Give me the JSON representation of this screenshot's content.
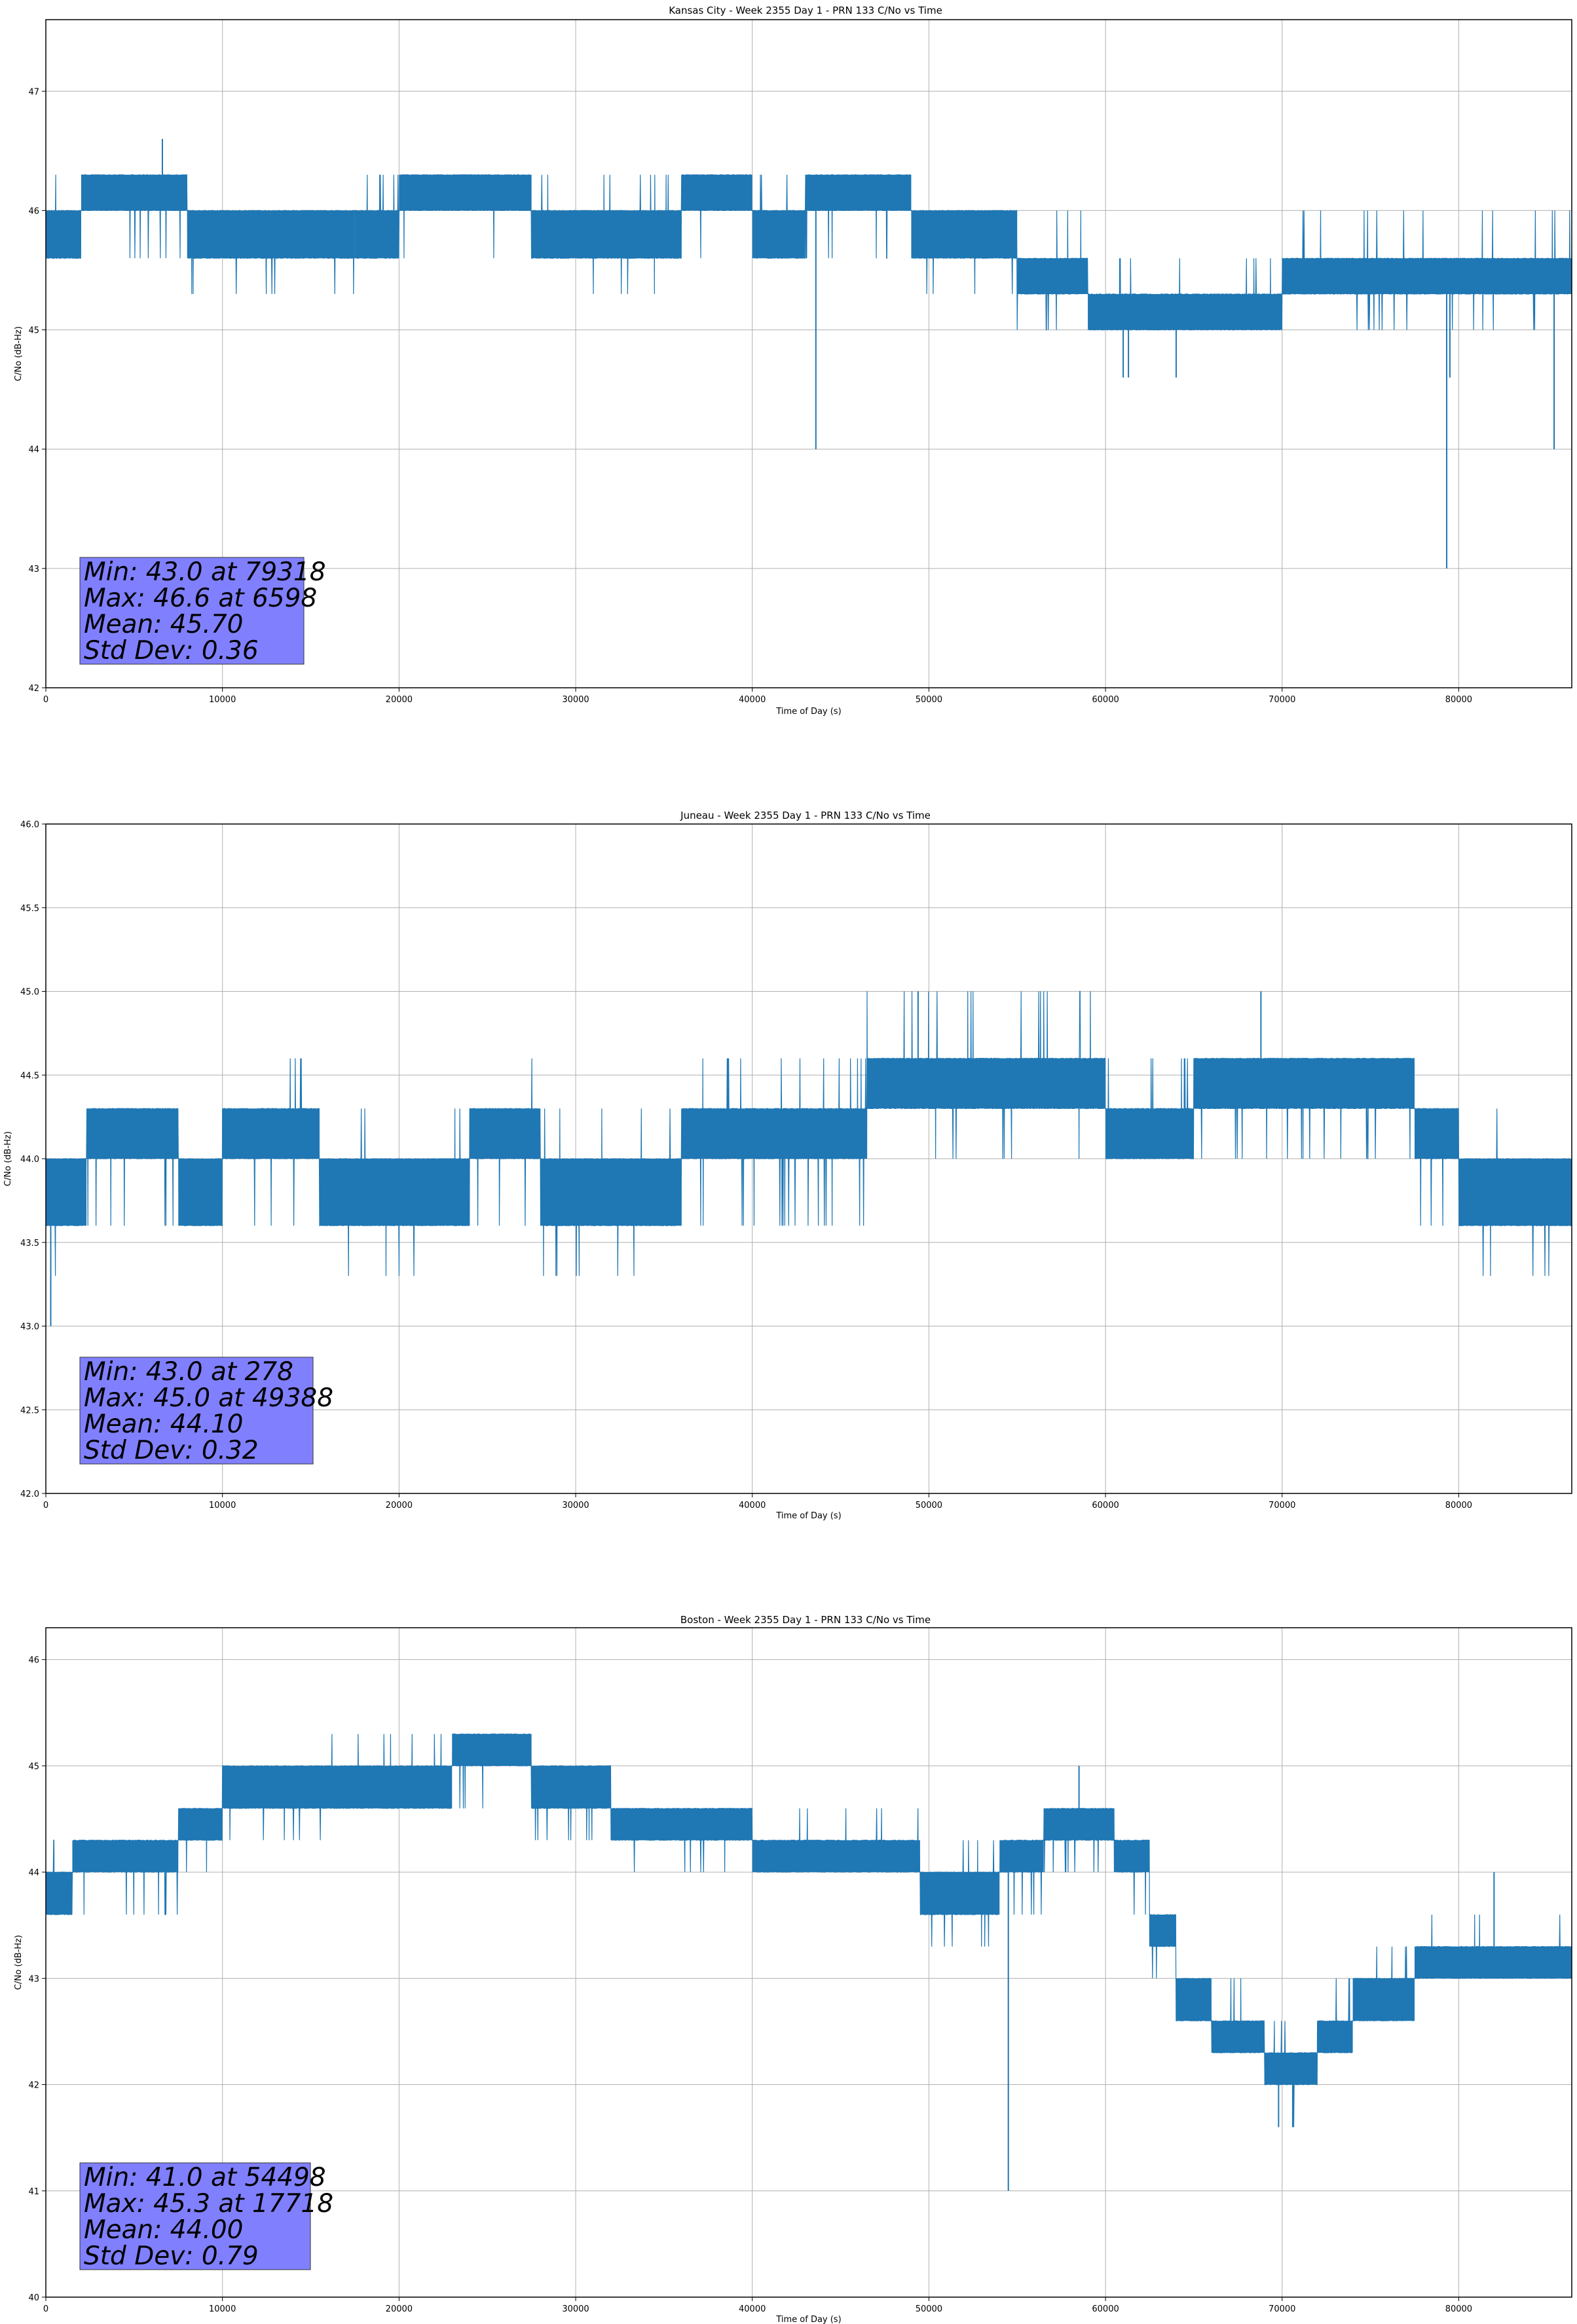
{
  "figure": {
    "line_color": "#1f77b4",
    "stats_box_color": "#8080ff",
    "grid": true
  },
  "chart_data": [
    {
      "type": "line",
      "title": "Kansas City - Week 2355 Day 1 - PRN 133 C/No vs Time",
      "xlabel": "Time of Day (s)",
      "ylabel": "C/No (dB-Hz)",
      "xlim": [
        0,
        86400
      ],
      "ylim": [
        42.0,
        47.6
      ],
      "x_ticks": [
        0,
        10000,
        20000,
        30000,
        40000,
        50000,
        60000,
        70000,
        80000
      ],
      "x_tick_labels": [
        "0",
        "10000",
        "20000",
        "30000",
        "40000",
        "50000",
        "60000",
        "70000",
        "80000"
      ],
      "y_ticks": [
        42,
        43,
        44,
        45,
        46,
        47
      ],
      "y_tick_labels": [
        "42",
        "43",
        "44",
        "45",
        "46",
        "47"
      ],
      "bands": [
        {
          "x": [
            0,
            2000
          ],
          "low": 45.6,
          "high": 46.0,
          "max": 46.3,
          "min": 45.6,
          "density": 0.4
        },
        {
          "x": [
            2000,
            8000
          ],
          "low": 46.0,
          "high": 46.3,
          "max": 46.3,
          "min": 45.6,
          "density": 0.25
        },
        {
          "x": [
            8000,
            17500
          ],
          "low": 45.6,
          "high": 46.0,
          "max": 46.0,
          "min": 45.3,
          "density": 0.6
        },
        {
          "x": [
            17500,
            20000
          ],
          "low": 45.6,
          "high": 46.0,
          "max": 46.3,
          "min": 45.6,
          "density": 0.4
        },
        {
          "x": [
            20000,
            27500
          ],
          "low": 46.0,
          "high": 46.3,
          "max": 46.3,
          "min": 45.6,
          "density": 0.5
        },
        {
          "x": [
            27500,
            36000
          ],
          "low": 45.6,
          "high": 46.0,
          "max": 46.3,
          "min": 45.3,
          "density": 0.5
        },
        {
          "x": [
            36000,
            40000
          ],
          "low": 46.0,
          "high": 46.3,
          "max": 46.3,
          "min": 45.6,
          "density": 0.6
        },
        {
          "x": [
            40000,
            43000
          ],
          "low": 45.6,
          "high": 46.0,
          "max": 46.3,
          "min": 45.6,
          "density": 0.4
        },
        {
          "x": [
            43000,
            49000
          ],
          "low": 46.0,
          "high": 46.3,
          "max": 46.3,
          "min": 45.6,
          "density": 0.5
        },
        {
          "x": [
            49000,
            55000
          ],
          "low": 45.6,
          "high": 46.0,
          "max": 46.0,
          "min": 45.3,
          "density": 0.4
        },
        {
          "x": [
            55000,
            59000
          ],
          "low": 45.3,
          "high": 45.6,
          "max": 46.0,
          "min": 45.0,
          "density": 0.5
        },
        {
          "x": [
            59000,
            70000
          ],
          "low": 45.0,
          "high": 45.3,
          "max": 45.6,
          "min": 45.0,
          "density": 0.4
        },
        {
          "x": [
            70000,
            86400
          ],
          "low": 45.3,
          "high": 45.6,
          "max": 46.0,
          "min": 45.0,
          "density": 0.5
        }
      ],
      "spikes": [
        {
          "x": 6598,
          "y": 46.6
        },
        {
          "x": 43600,
          "y": 44.0
        },
        {
          "x": 61000,
          "y": 44.6
        },
        {
          "x": 61300,
          "y": 44.6
        },
        {
          "x": 64000,
          "y": 44.6
        },
        {
          "x": 79318,
          "y": 43.0
        },
        {
          "x": 79500,
          "y": 44.6
        },
        {
          "x": 85400,
          "y": 44.0
        }
      ],
      "stats": {
        "min_value": 43.0,
        "min_time": 79318,
        "max_value": 46.6,
        "max_time": 6598,
        "mean": 45.7,
        "std_dev": 0.36,
        "lines": [
          "Min: 43.0 at 79318",
          "Max: 46.6 at 6598",
          "Mean: 45.70",
          "Std Dev: 0.36"
        ]
      }
    },
    {
      "type": "line",
      "title": "Juneau - Week 2355 Day 1 - PRN 133 C/No vs Time",
      "xlabel": "Time of Day (s)",
      "ylabel": "C/No (dB-Hz)",
      "xlim": [
        0,
        86400
      ],
      "ylim": [
        42.0,
        46.0
      ],
      "x_ticks": [
        0,
        10000,
        20000,
        30000,
        40000,
        50000,
        60000,
        70000,
        80000
      ],
      "x_tick_labels": [
        "0",
        "10000",
        "20000",
        "30000",
        "40000",
        "50000",
        "60000",
        "70000",
        "80000"
      ],
      "y_ticks": [
        42.0,
        42.5,
        43.0,
        43.5,
        44.0,
        44.5,
        45.0,
        45.5,
        46.0
      ],
      "y_tick_labels": [
        "42.0",
        "42.5",
        "43.0",
        "43.5",
        "44.0",
        "44.5",
        "45.0",
        "45.5",
        "46.0"
      ],
      "bands": [
        {
          "x": [
            0,
            2300
          ],
          "low": 43.6,
          "high": 44.0,
          "max": 44.0,
          "min": 43.3,
          "density": 0.5
        },
        {
          "x": [
            2300,
            7500
          ],
          "low": 44.0,
          "high": 44.3,
          "max": 44.6,
          "min": 43.6,
          "density": 0.5
        },
        {
          "x": [
            7500,
            10000
          ],
          "low": 43.6,
          "high": 44.0,
          "max": 44.3,
          "min": 43.6,
          "density": 0.5
        },
        {
          "x": [
            10000,
            15500
          ],
          "low": 44.0,
          "high": 44.3,
          "max": 44.6,
          "min": 43.6,
          "density": 0.4
        },
        {
          "x": [
            15500,
            24000
          ],
          "low": 43.6,
          "high": 44.0,
          "max": 44.3,
          "min": 43.3,
          "density": 0.6
        },
        {
          "x": [
            24000,
            28000
          ],
          "low": 44.0,
          "high": 44.3,
          "max": 44.6,
          "min": 43.6,
          "density": 0.4
        },
        {
          "x": [
            28000,
            36000
          ],
          "low": 43.6,
          "high": 44.0,
          "max": 44.3,
          "min": 43.3,
          "density": 0.6
        },
        {
          "x": [
            36000,
            46500
          ],
          "low": 44.0,
          "high": 44.3,
          "max": 44.6,
          "min": 43.6,
          "density": 0.4
        },
        {
          "x": [
            46500,
            60000
          ],
          "low": 44.3,
          "high": 44.6,
          "max": 45.0,
          "min": 44.0,
          "density": 0.5
        },
        {
          "x": [
            60000,
            65000
          ],
          "low": 44.0,
          "high": 44.3,
          "max": 44.6,
          "min": 44.0,
          "density": 0.5
        },
        {
          "x": [
            65000,
            77500
          ],
          "low": 44.3,
          "high": 44.6,
          "max": 44.6,
          "min": 44.0,
          "density": 0.6
        },
        {
          "x": [
            77500,
            80000
          ],
          "low": 44.0,
          "high": 44.3,
          "max": 44.3,
          "min": 43.6,
          "density": 0.4
        },
        {
          "x": [
            80000,
            86400
          ],
          "low": 43.6,
          "high": 44.0,
          "max": 44.3,
          "min": 43.3,
          "density": 0.6
        }
      ],
      "spikes": [
        {
          "x": 278,
          "y": 43.0
        },
        {
          "x": 49388,
          "y": 45.0
        },
        {
          "x": 68800,
          "y": 45.0
        }
      ],
      "stats": {
        "min_value": 43.0,
        "min_time": 278,
        "max_value": 45.0,
        "max_time": 49388,
        "mean": 44.1,
        "std_dev": 0.32,
        "lines": [
          "Min: 43.0 at 278",
          "Max: 45.0 at 49388",
          "Mean: 44.10",
          "Std Dev: 0.32"
        ]
      }
    },
    {
      "type": "line",
      "title": "Boston - Week 2355 Day 1 - PRN 133 C/No vs Time",
      "xlabel": "Time of Day (s)",
      "ylabel": "C/No (dB-Hz)",
      "xlim": [
        0,
        86400
      ],
      "ylim": [
        40.0,
        46.3
      ],
      "x_ticks": [
        0,
        10000,
        20000,
        30000,
        40000,
        50000,
        60000,
        70000,
        80000
      ],
      "x_tick_labels": [
        "0",
        "10000",
        "20000",
        "30000",
        "40000",
        "50000",
        "60000",
        "70000",
        "80000"
      ],
      "y_ticks": [
        40,
        41,
        42,
        43,
        44,
        45,
        46
      ],
      "y_tick_labels": [
        "40",
        "41",
        "42",
        "43",
        "44",
        "45",
        "46"
      ],
      "bands": [
        {
          "x": [
            0,
            1500
          ],
          "low": 43.6,
          "high": 44.0,
          "max": 44.3,
          "min": 43.6,
          "density": 0.5
        },
        {
          "x": [
            1500,
            7500
          ],
          "low": 44.0,
          "high": 44.3,
          "max": 44.3,
          "min": 43.6,
          "density": 0.4
        },
        {
          "x": [
            7500,
            10000
          ],
          "low": 44.3,
          "high": 44.6,
          "max": 44.6,
          "min": 44.0,
          "density": 0.5
        },
        {
          "x": [
            10000,
            16000
          ],
          "low": 44.6,
          "high": 45.0,
          "max": 45.0,
          "min": 44.3,
          "density": 0.5
        },
        {
          "x": [
            16000,
            23000
          ],
          "low": 44.6,
          "high": 45.0,
          "max": 45.3,
          "min": 44.6,
          "density": 0.4
        },
        {
          "x": [
            23000,
            27500
          ],
          "low": 45.0,
          "high": 45.3,
          "max": 45.3,
          "min": 44.6,
          "density": 0.5
        },
        {
          "x": [
            27500,
            32000
          ],
          "low": 44.6,
          "high": 45.0,
          "max": 45.0,
          "min": 44.3,
          "density": 0.5
        },
        {
          "x": [
            32000,
            40000
          ],
          "low": 44.3,
          "high": 44.6,
          "max": 44.6,
          "min": 44.0,
          "density": 0.5
        },
        {
          "x": [
            40000,
            49500
          ],
          "low": 44.0,
          "high": 44.3,
          "max": 44.6,
          "min": 44.0,
          "density": 0.5
        },
        {
          "x": [
            49500,
            54000
          ],
          "low": 43.6,
          "high": 44.0,
          "max": 44.3,
          "min": 43.3,
          "density": 0.5
        },
        {
          "x": [
            54000,
            56500
          ],
          "low": 44.0,
          "high": 44.3,
          "max": 44.3,
          "min": 43.6,
          "density": 0.5
        },
        {
          "x": [
            56500,
            60500
          ],
          "low": 44.3,
          "high": 44.6,
          "max": 44.6,
          "min": 44.0,
          "density": 0.4
        },
        {
          "x": [
            60500,
            62500
          ],
          "low": 44.0,
          "high": 44.3,
          "max": 44.3,
          "min": 43.6,
          "density": 0.5
        },
        {
          "x": [
            62500,
            64000
          ],
          "low": 43.3,
          "high": 43.6,
          "max": 44.0,
          "min": 43.0,
          "density": 0.5
        },
        {
          "x": [
            64000,
            66000
          ],
          "low": 42.6,
          "high": 43.0,
          "max": 43.3,
          "min": 42.6,
          "density": 0.5
        },
        {
          "x": [
            66000,
            69000
          ],
          "low": 42.3,
          "high": 42.6,
          "max": 43.0,
          "min": 42.3,
          "density": 0.5
        },
        {
          "x": [
            69000,
            72000
          ],
          "low": 42.0,
          "high": 42.3,
          "max": 42.6,
          "min": 41.6,
          "density": 0.5
        },
        {
          "x": [
            72000,
            74000
          ],
          "low": 42.3,
          "high": 42.6,
          "max": 43.0,
          "min": 42.3,
          "density": 0.5
        },
        {
          "x": [
            74000,
            77500
          ],
          "low": 42.6,
          "high": 43.0,
          "max": 43.3,
          "min": 42.3,
          "density": 0.5
        },
        {
          "x": [
            77500,
            86400
          ],
          "low": 43.0,
          "high": 43.3,
          "max": 43.6,
          "min": 43.0,
          "density": 0.6
        }
      ],
      "spikes": [
        {
          "x": 54498,
          "y": 41.0
        },
        {
          "x": 58500,
          "y": 45.0
        },
        {
          "x": 69800,
          "y": 41.6
        },
        {
          "x": 70600,
          "y": 41.6
        },
        {
          "x": 82000,
          "y": 44.0
        }
      ],
      "stats": {
        "min_value": 41.0,
        "min_time": 54498,
        "max_value": 45.3,
        "max_time": 17718,
        "mean": 44.0,
        "std_dev": 0.79,
        "lines": [
          "Min: 41.0 at 54498",
          "Max: 45.3 at 17718",
          "Mean: 44.00",
          "Std Dev: 0.79"
        ]
      }
    }
  ]
}
